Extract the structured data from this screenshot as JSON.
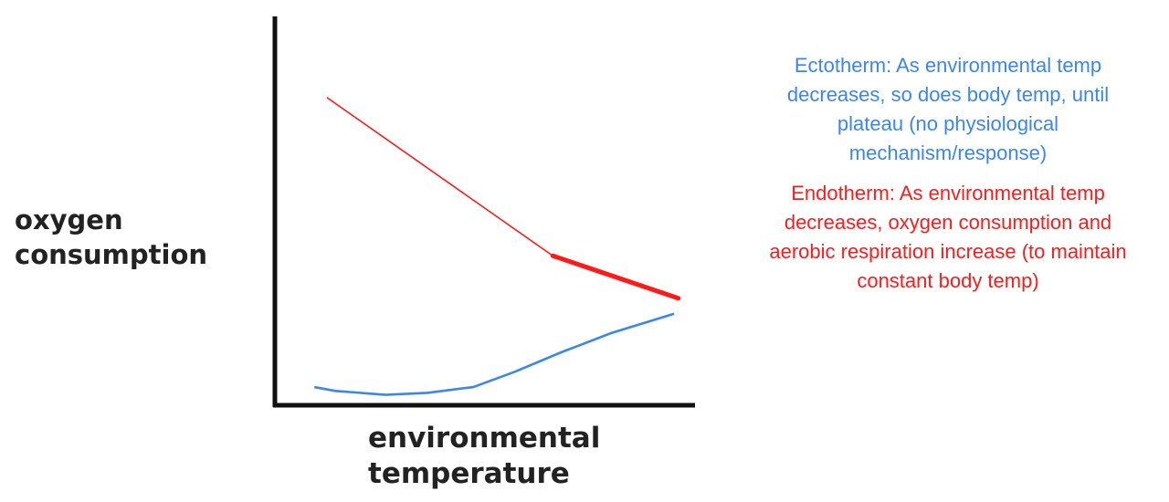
{
  "chart_data": {
    "type": "line",
    "title": "",
    "xlabel_lines": [
      "environmental",
      "temperature"
    ],
    "ylabel_lines": [
      "oxygen",
      "consumption"
    ],
    "x_ticks": "none",
    "y_ticks": "none",
    "grid": false,
    "legend": "none",
    "x_range": [
      0,
      100
    ],
    "y_range": [
      0,
      100
    ],
    "series": [
      {
        "key": "endotherm",
        "color": "#ff1a1a",
        "points": [
          {
            "x": 12,
            "y": 79
          },
          {
            "x": 66,
            "y": 38
          },
          {
            "x": 96,
            "y": 27
          }
        ],
        "thick_from_index": 1
      },
      {
        "key": "ectotherm",
        "color": "#3a86f0",
        "points": [
          {
            "x": 9,
            "y": 4
          },
          {
            "x": 14,
            "y": 3
          },
          {
            "x": 26,
            "y": 2
          },
          {
            "x": 36,
            "y": 2.5
          },
          {
            "x": 47,
            "y": 4
          },
          {
            "x": 57,
            "y": 8
          },
          {
            "x": 68,
            "y": 13
          },
          {
            "x": 80,
            "y": 18
          },
          {
            "x": 95,
            "y": 23
          }
        ]
      }
    ],
    "annotations": [
      {
        "key": "ectotherm",
        "color": "#3a86f0",
        "text": "Ectotherm: As environmental temp decreases, so does body temp, until plateau (no physiological mechanism/response)"
      },
      {
        "key": "endotherm",
        "color": "#ff1a1a",
        "text": "Endotherm: As environmental temp decreases, oxygen consumption and aerobic respiration increase (to maintain constant body temp)"
      }
    ]
  }
}
